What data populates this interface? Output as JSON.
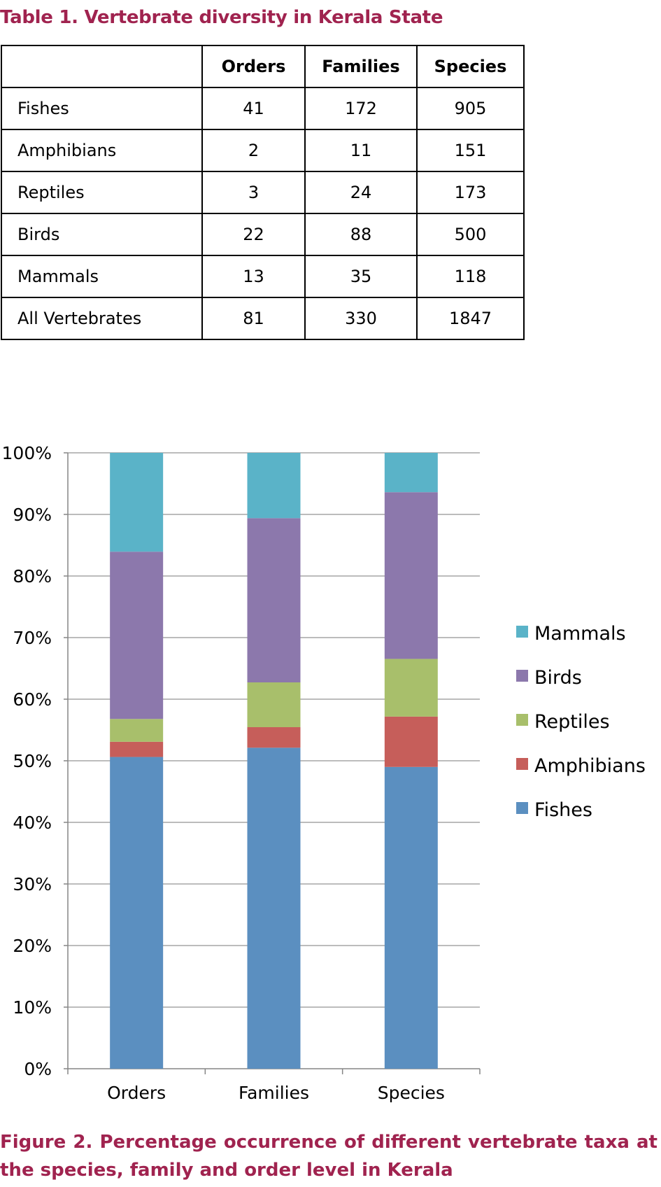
{
  "table": {
    "title": "Table 1. Vertebrate diversity in Kerala State",
    "headers": [
      "",
      "Orders",
      "Families",
      "Species"
    ],
    "rows": [
      [
        "Fishes",
        "41",
        "172",
        "905"
      ],
      [
        "Amphibians",
        "2",
        "11",
        "151"
      ],
      [
        "Reptiles",
        "3",
        "24",
        "173"
      ],
      [
        "Birds",
        "22",
        "88",
        "500"
      ],
      [
        "Mammals",
        "13",
        "35",
        "118"
      ],
      [
        "All Vertebrates",
        "81",
        "330",
        "1847"
      ]
    ]
  },
  "chart_data": {
    "type": "bar",
    "stacked": "percent",
    "categories": [
      "Orders",
      "Families",
      "Species"
    ],
    "series": [
      {
        "name": "Fishes",
        "color": "#5b8fc0",
        "values": [
          41,
          172,
          905
        ]
      },
      {
        "name": "Amphibians",
        "color": "#c65e5a",
        "values": [
          2,
          11,
          151
        ]
      },
      {
        "name": "Reptiles",
        "color": "#a8bf6b",
        "values": [
          3,
          24,
          173
        ]
      },
      {
        "name": "Birds",
        "color": "#8c78ac",
        "values": [
          22,
          88,
          500
        ]
      },
      {
        "name": "Mammals",
        "color": "#5ab3c8",
        "values": [
          13,
          35,
          118
        ]
      }
    ],
    "yticks": [
      "0%",
      "10%",
      "20%",
      "30%",
      "40%",
      "50%",
      "60%",
      "70%",
      "80%",
      "90%",
      "100%"
    ],
    "ylim": [
      0,
      100
    ],
    "grid": true,
    "legend_position": "right"
  },
  "caption": "Figure 2. Percentage occurrence of different vertebrate taxa at the species, family and order level in Kerala"
}
